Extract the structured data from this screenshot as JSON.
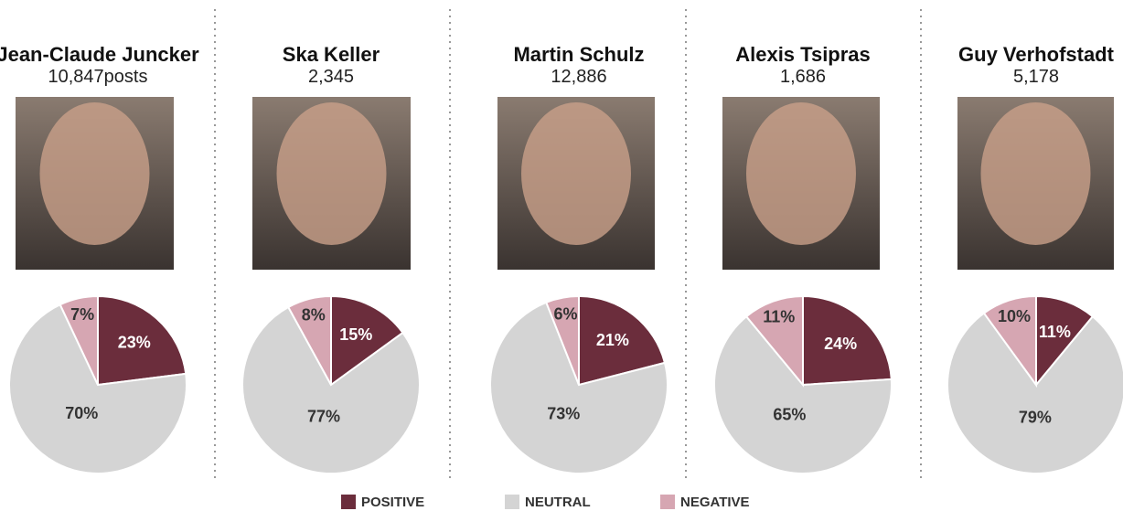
{
  "chart_data": [
    {
      "type": "pie",
      "title": "Jean-Claude Juncker",
      "subtitle": "10,847posts",
      "values": [
        23,
        70,
        7
      ],
      "value_labels": [
        "23%",
        "70%",
        "7%"
      ]
    },
    {
      "type": "pie",
      "title": "Ska Keller",
      "subtitle": "2,345",
      "values": [
        15,
        77,
        8
      ],
      "value_labels": [
        "15%",
        "77%",
        "8%"
      ]
    },
    {
      "type": "pie",
      "title": "Martin Schulz",
      "subtitle": "12,886",
      "values": [
        21,
        73,
        6
      ],
      "value_labels": [
        "21%",
        "73%",
        "6%"
      ]
    },
    {
      "type": "pie",
      "title": "Alexis Tsipras",
      "subtitle": "1,686",
      "values": [
        24,
        65,
        11
      ],
      "value_labels": [
        "24%",
        "65%",
        "11%"
      ]
    },
    {
      "type": "pie",
      "title": "Guy Verhofstadt",
      "subtitle": "5,178",
      "values": [
        11,
        79,
        10
      ],
      "value_labels": [
        "11%",
        "79%",
        "10%"
      ]
    }
  ],
  "legend": {
    "labels": [
      "POSITIVE",
      "NEUTRAL",
      "NEGATIVE"
    ],
    "colors": [
      "#6b2d3c",
      "#d4d4d4",
      "#d6a6b2"
    ]
  }
}
